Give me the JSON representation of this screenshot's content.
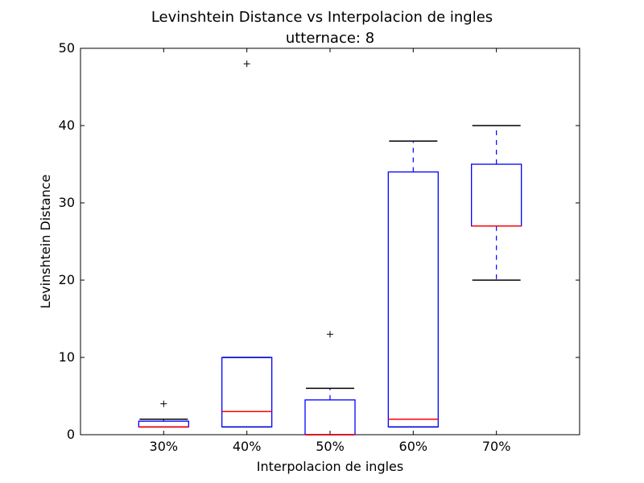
{
  "chart_data": {
    "type": "box",
    "title": "Levinshtein Distance vs Interpolacion de ingles",
    "subtitle": "utternace: 8",
    "xlabel": "Interpolacion de ingles",
    "ylabel": "Levinshtein Distance",
    "ylim": [
      0,
      50
    ],
    "yticks": [
      "0",
      "10",
      "20",
      "30",
      "40",
      "50"
    ],
    "categories": [
      "30%",
      "40%",
      "50%",
      "60%",
      "70%"
    ],
    "boxes": [
      {
        "category": "30%",
        "whisker_low": 1,
        "q1": 1,
        "median": 1,
        "q3": 1.75,
        "whisker_high": 2,
        "outliers": [
          4
        ]
      },
      {
        "category": "40%",
        "whisker_low": 1,
        "q1": 1,
        "median": 3,
        "q3": 10,
        "whisker_high": 10,
        "outliers": [
          48
        ]
      },
      {
        "category": "50%",
        "whisker_low": 0,
        "q1": 0,
        "median": 0,
        "q3": 4.5,
        "whisker_high": 6,
        "outliers": [
          13
        ]
      },
      {
        "category": "60%",
        "whisker_low": 1,
        "q1": 1,
        "median": 2,
        "q3": 34,
        "whisker_high": 38,
        "outliers": []
      },
      {
        "category": "70%",
        "whisker_low": 20,
        "q1": 27,
        "median": 27,
        "q3": 35,
        "whisker_high": 40,
        "outliers": []
      }
    ],
    "grid": false,
    "colors": {
      "box": "#0000ff",
      "median": "#ff0000",
      "whisker_cap": "#000000",
      "flier": "#000000"
    }
  }
}
